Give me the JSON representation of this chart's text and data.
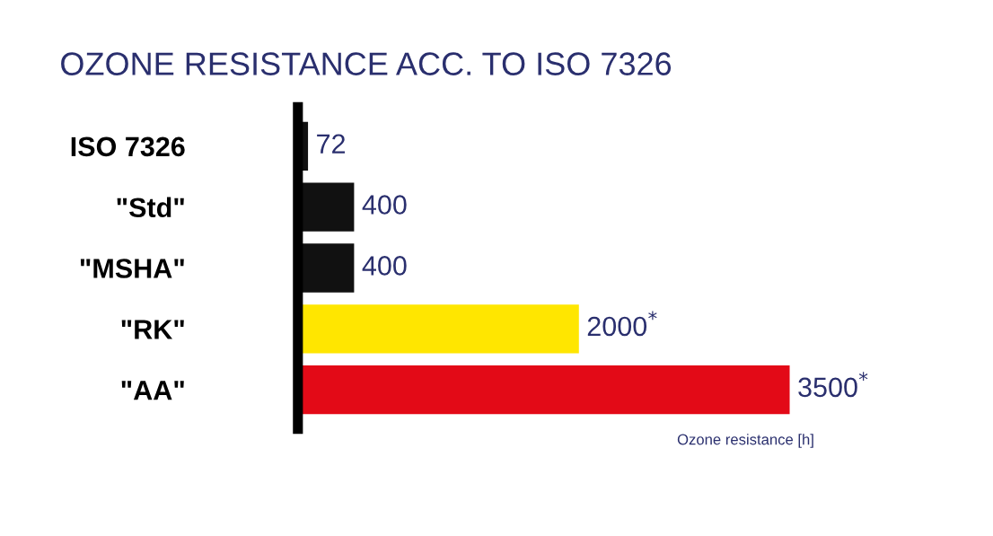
{
  "chart_data": {
    "type": "bar",
    "orientation": "horizontal",
    "title": "OZONE RESISTANCE ACC. TO ISO 7326",
    "xlabel": "Ozone resistance [h]",
    "categories": [
      "ISO 7326",
      "\"Std\"",
      "\"MSHA\"",
      "\"RK\"",
      "\"AA\""
    ],
    "values": [
      72,
      400,
      400,
      2000,
      3500
    ],
    "colors": [
      "#111111",
      "#111111",
      "#111111",
      "#ffe600",
      "#e30a17"
    ],
    "value_labels": [
      "72",
      "400",
      "400",
      "2000$^{*}$",
      "3500$^{*}$"
    ],
    "grid": false,
    "legend": false
  }
}
